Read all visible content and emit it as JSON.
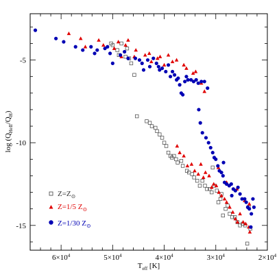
{
  "chart_data": {
    "type": "scatter",
    "xlabel": "T",
    "xlabel_sub": "eff",
    "xlabel_unit": " [K]",
    "ylabel": "log (Q",
    "ylabel_sub1": "HeII",
    "ylabel_mid": "/Q",
    "ylabel_sub2": "H",
    "ylabel_end": ")",
    "xlim": [
      66000,
      20000
    ],
    "ylim": [
      -16.5,
      -2.2
    ],
    "x_reversed": true,
    "grid": false,
    "legend_position": "bottom-left",
    "x_ticks": [
      {
        "value": 60000,
        "mant": "6×10",
        "exp": "4"
      },
      {
        "value": 50000,
        "mant": "5×10",
        "exp": "4"
      },
      {
        "value": 40000,
        "mant": "4×10",
        "exp": "4"
      },
      {
        "value": 30000,
        "mant": "3×10",
        "exp": "4"
      },
      {
        "value": 20000,
        "mant": "2×10",
        "exp": "4"
      }
    ],
    "y_ticks": [
      {
        "value": -5,
        "label": "-5"
      },
      {
        "value": -10,
        "label": "-10"
      },
      {
        "value": -15,
        "label": "-15"
      }
    ],
    "series": [
      {
        "name_main": "Z=Z",
        "name_sub": "",
        "marker": "open-square",
        "color": "#555555",
        "legend_color": "#333333",
        "points": [
          [
            50300,
            -4.0
          ],
          [
            50000,
            -4.1
          ],
          [
            49100,
            -4.4
          ],
          [
            48800,
            -4.7
          ],
          [
            47500,
            -4.8
          ],
          [
            46800,
            -4.9
          ],
          [
            46400,
            -5.2
          ],
          [
            45800,
            -5.9
          ],
          [
            48300,
            -4.0
          ],
          [
            47200,
            -4.3
          ],
          [
            45300,
            -8.4
          ],
          [
            43400,
            -8.7
          ],
          [
            42800,
            -8.8
          ],
          [
            42400,
            -9.0
          ],
          [
            41700,
            -9.1
          ],
          [
            41400,
            -9.3
          ],
          [
            40900,
            -9.5
          ],
          [
            40400,
            -9.7
          ],
          [
            40000,
            -10.0
          ],
          [
            39600,
            -10.2
          ],
          [
            39200,
            -10.6
          ],
          [
            38800,
            -10.8
          ],
          [
            38500,
            -10.9
          ],
          [
            38100,
            -10.8
          ],
          [
            37700,
            -11.0
          ],
          [
            37400,
            -11.2
          ],
          [
            36700,
            -11.1
          ],
          [
            36400,
            -11.4
          ],
          [
            35600,
            -11.7
          ],
          [
            35200,
            -11.8
          ],
          [
            34600,
            -11.9
          ],
          [
            34200,
            -12.1
          ],
          [
            33600,
            -12.3
          ],
          [
            33100,
            -12.6
          ],
          [
            32600,
            -12.3
          ],
          [
            32100,
            -12.6
          ],
          [
            31700,
            -12.8
          ],
          [
            31200,
            -12.8
          ],
          [
            30800,
            -13.0
          ],
          [
            30300,
            -12.6
          ],
          [
            29800,
            -12.9
          ],
          [
            29500,
            -13.6
          ],
          [
            29100,
            -13.4
          ],
          [
            28600,
            -14.4
          ],
          [
            28100,
            -14.0
          ],
          [
            27700,
            -13.8
          ],
          [
            27300,
            -14.3
          ],
          [
            26800,
            -14.5
          ],
          [
            26300,
            -14.5
          ],
          [
            25800,
            -14.8
          ],
          [
            25300,
            -15.0
          ],
          [
            24800,
            -14.9
          ],
          [
            24300,
            -15.0
          ],
          [
            23900,
            -16.1
          ],
          [
            23600,
            -13.9
          ],
          [
            23300,
            -15.2
          ],
          [
            28900,
            -13.1
          ],
          [
            30600,
            -11.5
          ]
        ]
      },
      {
        "name_main": "Z=1/5 Z",
        "name_sub": "",
        "marker": "filled-triangle",
        "color": "#e00000",
        "legend_color": "#e00000",
        "points": [
          [
            58500,
            -3.4
          ],
          [
            56200,
            -3.7
          ],
          [
            55300,
            -4.2
          ],
          [
            52700,
            -3.8
          ],
          [
            51800,
            -4.1
          ],
          [
            49700,
            -4.3
          ],
          [
            48900,
            -3.9
          ],
          [
            48300,
            -4.8
          ],
          [
            47500,
            -4.1
          ],
          [
            47000,
            -3.8
          ],
          [
            45800,
            -4.8
          ],
          [
            45500,
            -4.4
          ],
          [
            43700,
            -4.7
          ],
          [
            42900,
            -4.6
          ],
          [
            42500,
            -5.1
          ],
          [
            41300,
            -4.9
          ],
          [
            40800,
            -4.8
          ],
          [
            40000,
            -5.3
          ],
          [
            39200,
            -4.7
          ],
          [
            38400,
            -5.1
          ],
          [
            37600,
            -5.0
          ],
          [
            36200,
            -5.3
          ],
          [
            35700,
            -5.5
          ],
          [
            34400,
            -5.8
          ],
          [
            33900,
            -5.7
          ],
          [
            32800,
            -6.4
          ],
          [
            32200,
            -6.9
          ],
          [
            37500,
            -10.2
          ],
          [
            37000,
            -10.6
          ],
          [
            36200,
            -10.8
          ],
          [
            35500,
            -11.4
          ],
          [
            34700,
            -11.3
          ],
          [
            34100,
            -11.7
          ],
          [
            33400,
            -11.9
          ],
          [
            32900,
            -11.3
          ],
          [
            32400,
            -12.1
          ],
          [
            32000,
            -11.8
          ],
          [
            31300,
            -12.0
          ],
          [
            30800,
            -12.7
          ],
          [
            30400,
            -12.5
          ],
          [
            29900,
            -12.6
          ],
          [
            29400,
            -13.0
          ],
          [
            28900,
            -13.2
          ],
          [
            28300,
            -13.4
          ],
          [
            27900,
            -13.6
          ],
          [
            27300,
            -13.9
          ],
          [
            26700,
            -14.2
          ],
          [
            26200,
            -14.6
          ],
          [
            25800,
            -14.8
          ],
          [
            25300,
            -14.3
          ],
          [
            24700,
            -14.8
          ],
          [
            24200,
            -14.9
          ],
          [
            23600,
            -15.1
          ],
          [
            23400,
            -15.4
          ],
          [
            24400,
            -13.5
          ],
          [
            23500,
            -13.7
          ],
          [
            29500,
            -11.5
          ],
          [
            27900,
            -12.4
          ],
          [
            25900,
            -12.8
          ]
        ]
      },
      {
        "name_main": "Z=1/30 Z",
        "name_sub": "",
        "marker": "filled-circle",
        "color": "#0000b4",
        "legend_color": "#0000b4",
        "points": [
          [
            65000,
            -3.2
          ],
          [
            61000,
            -3.7
          ],
          [
            59500,
            -3.9
          ],
          [
            57200,
            -4.2
          ],
          [
            55800,
            -4.4
          ],
          [
            54200,
            -4.2
          ],
          [
            53500,
            -4.6
          ],
          [
            53000,
            -4.4
          ],
          [
            51500,
            -4.3
          ],
          [
            51000,
            -4.2
          ],
          [
            50500,
            -4.6
          ],
          [
            50000,
            -5.2
          ],
          [
            48500,
            -4.7
          ],
          [
            47700,
            -4.5
          ],
          [
            47000,
            -4.9
          ],
          [
            45600,
            -4.9
          ],
          [
            44800,
            -5.0
          ],
          [
            44300,
            -5.2
          ],
          [
            44000,
            -5.6
          ],
          [
            43200,
            -5.0
          ],
          [
            42800,
            -5.4
          ],
          [
            42100,
            -4.9
          ],
          [
            41500,
            -5.2
          ],
          [
            41100,
            -5.4
          ],
          [
            40900,
            -5.6
          ],
          [
            40400,
            -5.5
          ],
          [
            39700,
            -5.7
          ],
          [
            39200,
            -5.3
          ],
          [
            38800,
            -6.0
          ],
          [
            38400,
            -5.7
          ],
          [
            38000,
            -5.9
          ],
          [
            37600,
            -6.2
          ],
          [
            37300,
            -6.1
          ],
          [
            37000,
            -6.5
          ],
          [
            36700,
            -7.0
          ],
          [
            36400,
            -7.1
          ],
          [
            36000,
            -6.3
          ],
          [
            35700,
            -6.0
          ],
          [
            35400,
            -6.2
          ],
          [
            34800,
            -6.2
          ],
          [
            34300,
            -6.3
          ],
          [
            33800,
            -6.2
          ],
          [
            33400,
            -6.4
          ],
          [
            32800,
            -6.3
          ],
          [
            32200,
            -6.3
          ],
          [
            31600,
            -6.7
          ],
          [
            33300,
            -8.0
          ],
          [
            33000,
            -8.8
          ],
          [
            32600,
            -9.4
          ],
          [
            31900,
            -9.7
          ],
          [
            31400,
            -10.0
          ],
          [
            31000,
            -10.3
          ],
          [
            30600,
            -10.6
          ],
          [
            30300,
            -10.9
          ],
          [
            30000,
            -11.0
          ],
          [
            29600,
            -11.4
          ],
          [
            29300,
            -11.7
          ],
          [
            28900,
            -11.8
          ],
          [
            28600,
            -12.0
          ],
          [
            28300,
            -12.4
          ],
          [
            27900,
            -12.5
          ],
          [
            27400,
            -12.6
          ],
          [
            27000,
            -12.5
          ],
          [
            26600,
            -12.8
          ],
          [
            26200,
            -12.9
          ],
          [
            25700,
            -12.7
          ],
          [
            25300,
            -13.1
          ],
          [
            24900,
            -13.4
          ],
          [
            24400,
            -13.4
          ],
          [
            24100,
            -13.6
          ],
          [
            23800,
            -13.9
          ],
          [
            23500,
            -14.0
          ],
          [
            23100,
            -14.3
          ],
          [
            22800,
            -13.4
          ],
          [
            22600,
            -13.9
          ],
          [
            23200,
            -15.1
          ],
          [
            28500,
            -11.2
          ],
          [
            26900,
            -13.2
          ]
        ]
      }
    ]
  }
}
